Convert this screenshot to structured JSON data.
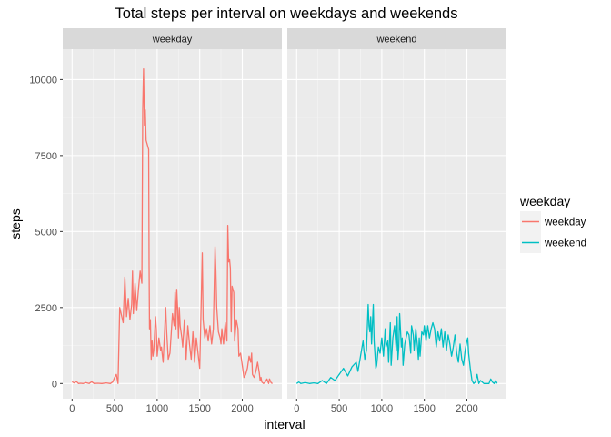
{
  "chart_data": {
    "type": "line",
    "title": "Total steps per interval on weekdays and weekends",
    "xlabel": "interval",
    "ylabel": "steps",
    "xlim": [
      -110,
      2465
    ],
    "ylim": [
      -500,
      11000
    ],
    "x_ticks": [
      0,
      500,
      1000,
      1500,
      2000
    ],
    "y_ticks": [
      0,
      2500,
      5000,
      7500,
      10000
    ],
    "y_tick_labels": [
      "0",
      "2500",
      "5000",
      "7500",
      "10000"
    ],
    "grid": true,
    "legend": {
      "title": "weekday",
      "position": "right"
    },
    "series": [
      {
        "name": "weekday",
        "panel": "weekday",
        "color": "#F8766D",
        "points": [
          [
            0,
            60
          ],
          [
            25,
            20
          ],
          [
            50,
            70
          ],
          [
            75,
            0
          ],
          [
            100,
            10
          ],
          [
            130,
            0
          ],
          [
            160,
            30
          ],
          [
            200,
            0
          ],
          [
            230,
            60
          ],
          [
            260,
            0
          ],
          [
            300,
            10
          ],
          [
            350,
            0
          ],
          [
            400,
            20
          ],
          [
            450,
            0
          ],
          [
            480,
            60
          ],
          [
            500,
            200
          ],
          [
            520,
            300
          ],
          [
            540,
            0
          ],
          [
            560,
            2500
          ],
          [
            600,
            2000
          ],
          [
            620,
            3500
          ],
          [
            640,
            2200
          ],
          [
            660,
            2800
          ],
          [
            680,
            2100
          ],
          [
            700,
            2600
          ],
          [
            710,
            3700
          ],
          [
            720,
            2300
          ],
          [
            740,
            3300
          ],
          [
            760,
            2400
          ],
          [
            780,
            3100
          ],
          [
            800,
            3700
          ],
          [
            820,
            3300
          ],
          [
            830,
            9000
          ],
          [
            840,
            10350
          ],
          [
            850,
            8500
          ],
          [
            860,
            9000
          ],
          [
            870,
            8000
          ],
          [
            900,
            7700
          ],
          [
            905,
            3900
          ],
          [
            910,
            1800
          ],
          [
            920,
            2100
          ],
          [
            930,
            800
          ],
          [
            940,
            1400
          ],
          [
            950,
            900
          ],
          [
            960,
            1100
          ],
          [
            980,
            2200
          ],
          [
            990,
            1800
          ],
          [
            1000,
            900
          ],
          [
            1020,
            1500
          ],
          [
            1040,
            1100
          ],
          [
            1050,
            1200
          ],
          [
            1070,
            700
          ],
          [
            1100,
            2500
          ],
          [
            1110,
            1800
          ],
          [
            1130,
            800
          ],
          [
            1150,
            1000
          ],
          [
            1180,
            2300
          ],
          [
            1200,
            1900
          ],
          [
            1210,
            3000
          ],
          [
            1220,
            1800
          ],
          [
            1230,
            3100
          ],
          [
            1240,
            2500
          ],
          [
            1250,
            1500
          ],
          [
            1260,
            2500
          ],
          [
            1270,
            1900
          ],
          [
            1290,
            1500
          ],
          [
            1300,
            1200
          ],
          [
            1320,
            2100
          ],
          [
            1340,
            800
          ],
          [
            1360,
            1900
          ],
          [
            1380,
            1300
          ],
          [
            1400,
            800
          ],
          [
            1420,
            1700
          ],
          [
            1440,
            700
          ],
          [
            1460,
            1500
          ],
          [
            1480,
            1000
          ],
          [
            1500,
            500
          ],
          [
            1520,
            3000
          ],
          [
            1530,
            4300
          ],
          [
            1540,
            2100
          ],
          [
            1560,
            1500
          ],
          [
            1580,
            1800
          ],
          [
            1600,
            1400
          ],
          [
            1620,
            1900
          ],
          [
            1640,
            1300
          ],
          [
            1660,
            1800
          ],
          [
            1680,
            4500
          ],
          [
            1690,
            3700
          ],
          [
            1700,
            2500
          ],
          [
            1720,
            1700
          ],
          [
            1740,
            1500
          ],
          [
            1750,
            1300
          ],
          [
            1760,
            1800
          ],
          [
            1780,
            1300
          ],
          [
            1800,
            2000
          ],
          [
            1820,
            1400
          ],
          [
            1830,
            5200
          ],
          [
            1840,
            4000
          ],
          [
            1850,
            4100
          ],
          [
            1860,
            3800
          ],
          [
            1870,
            1700
          ],
          [
            1880,
            3200
          ],
          [
            1900,
            3000
          ],
          [
            1910,
            1400
          ],
          [
            1930,
            2100
          ],
          [
            1950,
            1800
          ],
          [
            1960,
            900
          ],
          [
            1980,
            1000
          ],
          [
            2000,
            600
          ],
          [
            2020,
            200
          ],
          [
            2040,
            300
          ],
          [
            2060,
            500
          ],
          [
            2080,
            900
          ],
          [
            2100,
            700
          ],
          [
            2110,
            1000
          ],
          [
            2120,
            300
          ],
          [
            2140,
            200
          ],
          [
            2160,
            400
          ],
          [
            2180,
            700
          ],
          [
            2200,
            350
          ],
          [
            2210,
            100
          ],
          [
            2220,
            200
          ],
          [
            2230,
            50
          ],
          [
            2250,
            0
          ],
          [
            2270,
            50
          ],
          [
            2290,
            150
          ],
          [
            2310,
            0
          ],
          [
            2320,
            150
          ],
          [
            2340,
            20
          ],
          [
            2355,
            0
          ]
        ]
      },
      {
        "name": "weekend",
        "panel": "weekend",
        "color": "#00BFC4",
        "points": [
          [
            0,
            0
          ],
          [
            25,
            50
          ],
          [
            50,
            0
          ],
          [
            100,
            30
          ],
          [
            150,
            0
          ],
          [
            200,
            20
          ],
          [
            250,
            0
          ],
          [
            300,
            100
          ],
          [
            350,
            0
          ],
          [
            400,
            200
          ],
          [
            450,
            100
          ],
          [
            500,
            300
          ],
          [
            550,
            500
          ],
          [
            600,
            250
          ],
          [
            650,
            550
          ],
          [
            700,
            700
          ],
          [
            720,
            400
          ],
          [
            750,
            900
          ],
          [
            780,
            1400
          ],
          [
            800,
            800
          ],
          [
            820,
            1100
          ],
          [
            840,
            2600
          ],
          [
            850,
            1900
          ],
          [
            860,
            1700
          ],
          [
            870,
            2200
          ],
          [
            880,
            1300
          ],
          [
            900,
            2600
          ],
          [
            910,
            1400
          ],
          [
            930,
            500
          ],
          [
            940,
            600
          ],
          [
            960,
            1200
          ],
          [
            980,
            1000
          ],
          [
            1000,
            1500
          ],
          [
            1020,
            900
          ],
          [
            1040,
            1800
          ],
          [
            1050,
            1200
          ],
          [
            1070,
            1400
          ],
          [
            1080,
            700
          ],
          [
            1100,
            2000
          ],
          [
            1110,
            600
          ],
          [
            1130,
            1500
          ],
          [
            1150,
            1900
          ],
          [
            1170,
            1100
          ],
          [
            1180,
            2200
          ],
          [
            1190,
            800
          ],
          [
            1200,
            1200
          ],
          [
            1210,
            2300
          ],
          [
            1230,
            1200
          ],
          [
            1240,
            1500
          ],
          [
            1250,
            600
          ],
          [
            1270,
            1300
          ],
          [
            1300,
            1700
          ],
          [
            1320,
            1600
          ],
          [
            1340,
            1000
          ],
          [
            1350,
            1900
          ],
          [
            1370,
            1600
          ],
          [
            1380,
            1100
          ],
          [
            1400,
            1800
          ],
          [
            1420,
            1200
          ],
          [
            1430,
            800
          ],
          [
            1440,
            1500
          ],
          [
            1450,
            900
          ],
          [
            1470,
            1700
          ],
          [
            1490,
            1600
          ],
          [
            1500,
            1900
          ],
          [
            1520,
            1400
          ],
          [
            1540,
            1900
          ],
          [
            1560,
            1500
          ],
          [
            1580,
            1800
          ],
          [
            1600,
            2000
          ],
          [
            1620,
            1800
          ],
          [
            1640,
            1200
          ],
          [
            1660,
            1700
          ],
          [
            1680,
            1400
          ],
          [
            1700,
            1800
          ],
          [
            1720,
            1200
          ],
          [
            1740,
            1700
          ],
          [
            1760,
            1100
          ],
          [
            1780,
            1600
          ],
          [
            1800,
            1300
          ],
          [
            1820,
            900
          ],
          [
            1840,
            1200
          ],
          [
            1860,
            1600
          ],
          [
            1880,
            1000
          ],
          [
            1900,
            700
          ],
          [
            1920,
            1300
          ],
          [
            1940,
            800
          ],
          [
            1960,
            600
          ],
          [
            1980,
            1100
          ],
          [
            2000,
            1400
          ],
          [
            2010,
            1500
          ],
          [
            2020,
            1000
          ],
          [
            2040,
            500
          ],
          [
            2060,
            100
          ],
          [
            2080,
            0
          ],
          [
            2100,
            50
          ],
          [
            2120,
            300
          ],
          [
            2140,
            0
          ],
          [
            2160,
            100
          ],
          [
            2180,
            50
          ],
          [
            2200,
            0
          ],
          [
            2220,
            0
          ],
          [
            2240,
            0
          ],
          [
            2260,
            0
          ],
          [
            2280,
            150
          ],
          [
            2300,
            50
          ],
          [
            2320,
            0
          ],
          [
            2340,
            100
          ],
          [
            2355,
            0
          ]
        ]
      }
    ]
  }
}
